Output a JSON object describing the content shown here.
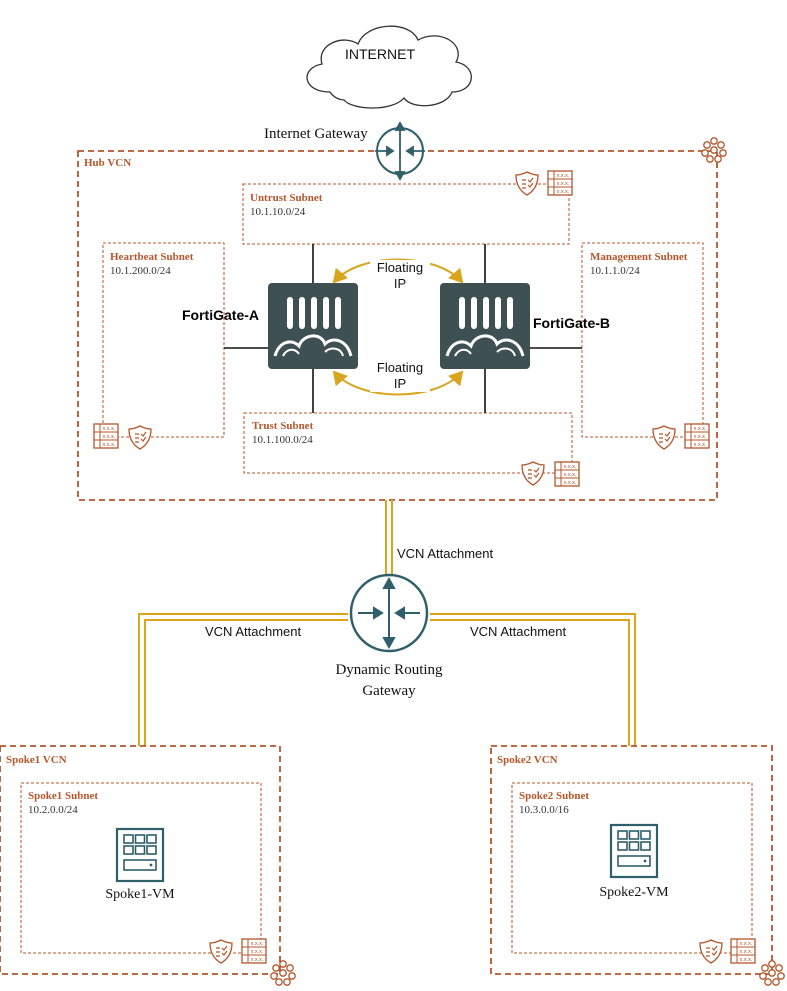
{
  "colors": {
    "oracle_orange": "#b5562b",
    "gateway_teal": "#2f5f6b",
    "fortigate_body": "#3f5053",
    "attachment_gold": "#d8a51d",
    "floating_arrow": "#d8a51d"
  },
  "internet": {
    "label": "INTERNET"
  },
  "internet_gateway": {
    "label": "Internet Gateway"
  },
  "hub_vcn": {
    "title": "Hub VCN",
    "subnets": {
      "untrust": {
        "title": "Untrust Subnet",
        "cidr": "10.1.10.0/24"
      },
      "heartbeat": {
        "title": "Heartbeat Subnet",
        "cidr": "10.1.200.0/24"
      },
      "management": {
        "title": "Management Subnet",
        "cidr": "10.1.1.0/24"
      },
      "trust": {
        "title": "Trust Subnet",
        "cidr": "10.1.100.0/24"
      }
    },
    "fortigate_a": "FortiGate-A",
    "fortigate_b": "FortiGate-B",
    "floating_ip_top": "Floating\nIP",
    "floating_ip_bottom": "Floating\nIP"
  },
  "drg": {
    "label": "Dynamic Routing\nGateway",
    "attachments": {
      "hub": "VCN Attachment",
      "spoke1": "VCN Attachment",
      "spoke2": "VCN Attachment"
    }
  },
  "spoke1": {
    "title": "Spoke1 VCN",
    "subnet_title": "Spoke1 Subnet",
    "cidr": "10.2.0.0/24",
    "vm_label": "Spoke1-VM"
  },
  "spoke2": {
    "title": "Spoke2 VCN",
    "subnet_title": "Spoke2 Subnet",
    "cidr": "10.3.0.0/16",
    "vm_label": "Spoke2-VM"
  },
  "icons": {
    "security_list": "shield-check-icon",
    "route_table": "route-table-icon",
    "vcn": "vcn-network-icon",
    "vm": "virtual-machine-icon",
    "firewall": "fortigate-firewall-icon",
    "gateway": "gateway-arrows-icon"
  }
}
